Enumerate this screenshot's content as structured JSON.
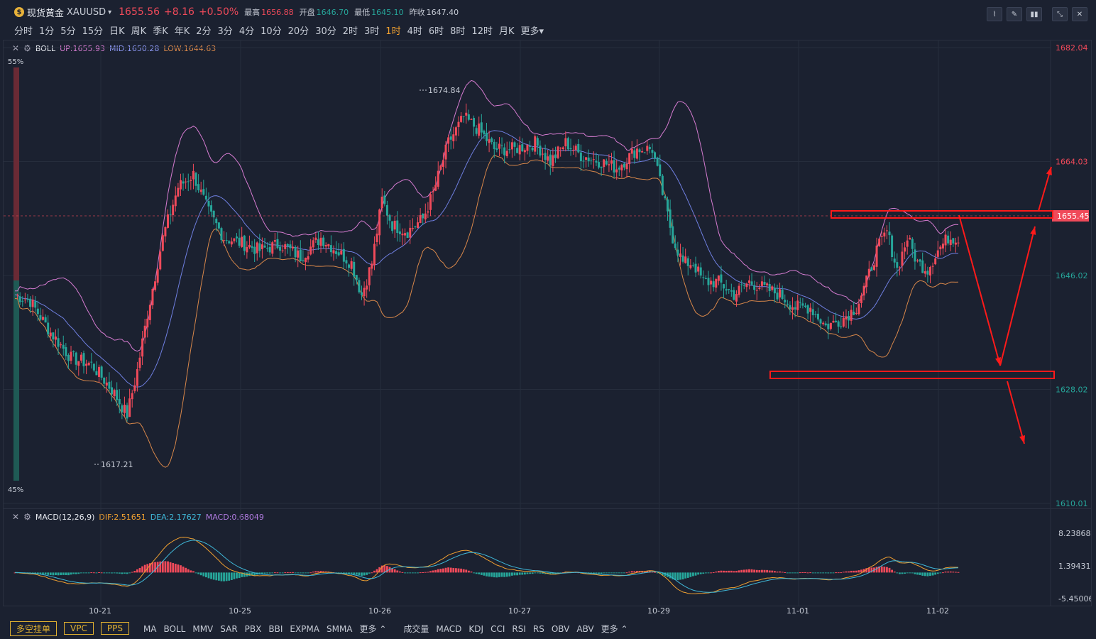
{
  "header": {
    "name": "现货黄金",
    "symbol": "XAUUSD",
    "price": "1655.56",
    "change": "+8.16",
    "change_pct": "+0.50%",
    "high_label": "最高",
    "high": "1656.88",
    "open_label": "开盘",
    "open": "1646.70",
    "low_label": "最低",
    "low": "1645.10",
    "prev_label": "昨收",
    "prev": "1647.40"
  },
  "periods": [
    "分时",
    "1分",
    "5分",
    "15分",
    "日K",
    "周K",
    "季K",
    "年K",
    "2分",
    "3分",
    "4分",
    "10分",
    "20分",
    "30分",
    "2时",
    "3时",
    "1时",
    "4时",
    "6时",
    "8时",
    "12时",
    "月K",
    "更多"
  ],
  "active_period": "1时",
  "boll": {
    "name": "BOLL",
    "up": "UP:1655.93",
    "mid": "MID:1650.28",
    "low": "LOW:1644.63"
  },
  "macd": {
    "name": "MACD(12,26,9)",
    "dif": "DIF:2.51651",
    "dea": "DEA:2.17627",
    "macd": "MACD:0.68049"
  },
  "price_axis": [
    "1682.04",
    "1664.03",
    "1646.02",
    "1628.02",
    "1610.01"
  ],
  "current_price_tag": "1655.45",
  "macd_axis": [
    "8.23868",
    "1.39431",
    "-5.45006"
  ],
  "date_axis": [
    "10-21",
    "10-25",
    "10-26",
    "10-27",
    "10-29",
    "11-01",
    "11-02"
  ],
  "annotations": {
    "high_mark": "1674.84",
    "low_mark": "1617.21",
    "pct_top": "55%",
    "pct_bottom": "45%"
  },
  "bottom": {
    "buttons": [
      "多空挂单",
      "VPC",
      "PPS"
    ],
    "main_indicators": [
      "MA",
      "BOLL",
      "MMV",
      "SAR",
      "PBX",
      "BBI",
      "EXPMA",
      "SMMA",
      "更多"
    ],
    "sub_indicators": [
      "成交量",
      "MACD",
      "KDJ",
      "CCI",
      "RSI",
      "RS",
      "OBV",
      "ABV",
      "更多"
    ]
  },
  "colors": {
    "up": "#f04a5a",
    "down": "#26a69a",
    "boll_up": "#d57bd0",
    "boll_mid": "#6f7fe0",
    "boll_low": "#d8874a",
    "accent": "#f0a030"
  }
}
